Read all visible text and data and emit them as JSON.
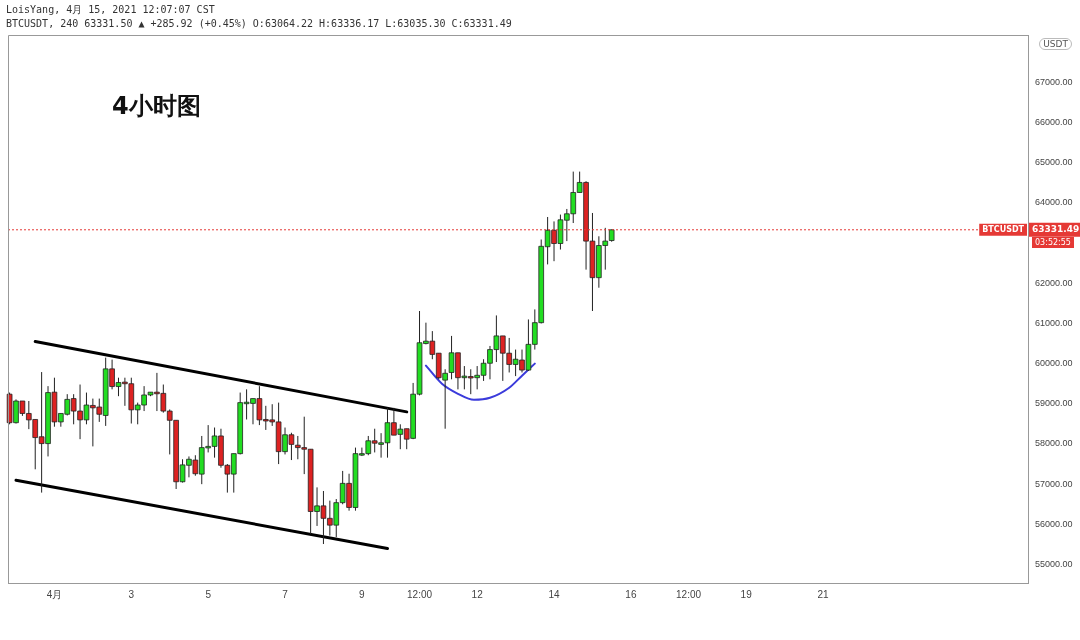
{
  "chart_data": {
    "type": "candlestick",
    "title": "4小时图",
    "ylabel": "USDT",
    "annotations": [
      "LoisYang, 4月 15, 2021 12:07:07 CST",
      "BTCUSDT, 240 63331.50 ▲ +285.92 (+0.45%) O:63064.22 H:63336.17 L:63035.30 C:63331.49",
      "03:52:55",
      "63331.49"
    ],
    "x": [
      "2021-03-30T20:00",
      "2021-03-31T00:00",
      "2021-03-31T04:00",
      "2021-03-31T08:00",
      "2021-03-31T12:00",
      "2021-03-31T16:00",
      "2021-03-31T20:00",
      "2021-04-01T00:00",
      "2021-04-01T04:00",
      "2021-04-01T08:00",
      "2021-04-01T12:00",
      "2021-04-01T16:00",
      "2021-04-01T20:00",
      "2021-04-02T00:00",
      "2021-04-02T04:00",
      "2021-04-02T08:00",
      "2021-04-02T12:00",
      "2021-04-02T16:00",
      "2021-04-02T20:00",
      "2021-04-03T00:00",
      "2021-04-03T04:00",
      "2021-04-03T08:00",
      "2021-04-03T12:00",
      "2021-04-03T16:00",
      "2021-04-03T20:00",
      "2021-04-04T00:00",
      "2021-04-04T04:00",
      "2021-04-04T08:00",
      "2021-04-04T12:00",
      "2021-04-04T16:00",
      "2021-04-04T20:00",
      "2021-04-05T00:00",
      "2021-04-05T04:00",
      "2021-04-05T08:00",
      "2021-04-05T12:00",
      "2021-04-05T16:00",
      "2021-04-05T20:00",
      "2021-04-06T00:00",
      "2021-04-06T04:00",
      "2021-04-06T08:00",
      "2021-04-06T12:00",
      "2021-04-06T16:00",
      "2021-04-06T20:00",
      "2021-04-07T00:00",
      "2021-04-07T04:00",
      "2021-04-07T08:00",
      "2021-04-07T12:00",
      "2021-04-07T16:00",
      "2021-04-07T20:00",
      "2021-04-08T00:00",
      "2021-04-08T04:00",
      "2021-04-08T08:00",
      "2021-04-08T12:00",
      "2021-04-08T16:00",
      "2021-04-08T20:00",
      "2021-04-09T00:00",
      "2021-04-09T04:00",
      "2021-04-09T08:00",
      "2021-04-09T12:00",
      "2021-04-09T16:00",
      "2021-04-09T20:00",
      "2021-04-10T00:00",
      "2021-04-10T04:00",
      "2021-04-10T08:00",
      "2021-04-10T12:00",
      "2021-04-10T16:00",
      "2021-04-10T20:00",
      "2021-04-11T00:00",
      "2021-04-11T04:00",
      "2021-04-11T08:00",
      "2021-04-11T12:00",
      "2021-04-11T16:00",
      "2021-04-11T20:00",
      "2021-04-12T00:00",
      "2021-04-12T04:00",
      "2021-04-12T08:00",
      "2021-04-12T12:00",
      "2021-04-12T16:00",
      "2021-04-12T20:00",
      "2021-04-13T00:00",
      "2021-04-13T04:00",
      "2021-04-13T08:00",
      "2021-04-13T12:00",
      "2021-04-13T16:00",
      "2021-04-13T20:00",
      "2021-04-14T00:00",
      "2021-04-14T04:00",
      "2021-04-14T08:00",
      "2021-04-14T12:00",
      "2021-04-14T16:00",
      "2021-04-14T20:00",
      "2021-04-15T00:00",
      "2021-04-15T04:00",
      "2021-04-15T08:00",
      "2021-04-15T12:00"
    ],
    "ohlc": [
      [
        59240,
        59280,
        58490,
        58530
      ],
      [
        58530,
        59110,
        58510,
        59070
      ],
      [
        59070,
        59070,
        58700,
        58760
      ],
      [
        58760,
        59070,
        58370,
        58600
      ],
      [
        58610,
        58610,
        57370,
        58160
      ],
      [
        58180,
        59790,
        56790,
        58010
      ],
      [
        58010,
        59440,
        57690,
        59280
      ],
      [
        59290,
        59650,
        58430,
        58550
      ],
      [
        58550,
        58760,
        58430,
        58760
      ],
      [
        58740,
        59240,
        58710,
        59110
      ],
      [
        59130,
        59240,
        58490,
        58820
      ],
      [
        58820,
        59480,
        58120,
        58600
      ],
      [
        58600,
        59280,
        58490,
        58970
      ],
      [
        58960,
        59130,
        57940,
        58900
      ],
      [
        58920,
        59130,
        58550,
        58740
      ],
      [
        58710,
        60150,
        58450,
        59870
      ],
      [
        59870,
        60100,
        59360,
        59430
      ],
      [
        59430,
        59650,
        59190,
        59530
      ],
      [
        59540,
        59650,
        58950,
        59500
      ],
      [
        59500,
        59650,
        58510,
        58850
      ],
      [
        58850,
        59030,
        58490,
        58970
      ],
      [
        58970,
        59440,
        58820,
        59220
      ],
      [
        59220,
        59290,
        59190,
        59290
      ],
      [
        59290,
        59770,
        58820,
        59250
      ],
      [
        59260,
        59480,
        58780,
        58820
      ],
      [
        58820,
        58860,
        57740,
        58590
      ],
      [
        58590,
        58590,
        56880,
        57060
      ],
      [
        57060,
        57620,
        57040,
        57480
      ],
      [
        57470,
        57690,
        57170,
        57620
      ],
      [
        57600,
        57720,
        57210,
        57260
      ],
      [
        57250,
        58200,
        57000,
        57910
      ],
      [
        57910,
        58470,
        57790,
        57940
      ],
      [
        57940,
        58410,
        57660,
        58200
      ],
      [
        58200,
        58380,
        57410,
        57470
      ],
      [
        57470,
        57500,
        56790,
        57250
      ],
      [
        57250,
        57760,
        56790,
        57760
      ],
      [
        57760,
        59280,
        57740,
        59030
      ],
      [
        59010,
        59360,
        58610,
        59040
      ],
      [
        59010,
        59130,
        58490,
        59130
      ],
      [
        59130,
        59440,
        58470,
        58600
      ],
      [
        58610,
        58950,
        58350,
        58580
      ],
      [
        58600,
        58990,
        58450,
        58550
      ],
      [
        58550,
        59030,
        57500,
        57810
      ],
      [
        57810,
        58410,
        57740,
        58230
      ],
      [
        58230,
        58280,
        57600,
        57990
      ],
      [
        57970,
        58200,
        57620,
        57910
      ],
      [
        57910,
        58680,
        57250,
        57870
      ],
      [
        57870,
        57870,
        55760,
        56320
      ],
      [
        56320,
        56920,
        55960,
        56460
      ],
      [
        56460,
        56830,
        55510,
        56150
      ],
      [
        56150,
        56590,
        55720,
        55980
      ],
      [
        55980,
        56630,
        55680,
        56540
      ],
      [
        56540,
        57330,
        56500,
        57020
      ],
      [
        57020,
        57260,
        56340,
        56420
      ],
      [
        56420,
        57910,
        56340,
        57760
      ],
      [
        57740,
        57910,
        57700,
        57760
      ],
      [
        57760,
        58200,
        57720,
        58080
      ],
      [
        58080,
        58380,
        57790,
        58020
      ],
      [
        57990,
        58270,
        57660,
        58030
      ],
      [
        58030,
        58900,
        57660,
        58530
      ],
      [
        58530,
        58900,
        58220,
        58220
      ],
      [
        58240,
        58490,
        57870,
        58370
      ],
      [
        58380,
        58380,
        57870,
        58120
      ],
      [
        58140,
        59520,
        58120,
        59240
      ],
      [
        59240,
        61310,
        59210,
        60520
      ],
      [
        60500,
        61020,
        60480,
        60560
      ],
      [
        60560,
        60810,
        60110,
        60230
      ],
      [
        60260,
        60260,
        59610,
        59650
      ],
      [
        59590,
        59860,
        58380,
        59760
      ],
      [
        59780,
        60690,
        59610,
        60270
      ],
      [
        60270,
        60270,
        59360,
        59650
      ],
      [
        59650,
        59940,
        59360,
        59690
      ],
      [
        59680,
        59860,
        59240,
        59650
      ],
      [
        59650,
        59940,
        59360,
        59710
      ],
      [
        59710,
        60110,
        59570,
        60010
      ],
      [
        60010,
        60440,
        59610,
        60350
      ],
      [
        60350,
        61200,
        60040,
        60690
      ],
      [
        60690,
        60690,
        59570,
        60260
      ],
      [
        60260,
        60640,
        59780,
        59980
      ],
      [
        59980,
        60350,
        59690,
        60110
      ],
      [
        60090,
        60350,
        59780,
        59840
      ],
      [
        59840,
        61100,
        59820,
        60480
      ],
      [
        60480,
        61350,
        60350,
        61020
      ],
      [
        61020,
        63090,
        61000,
        62920
      ],
      [
        62910,
        63650,
        62470,
        63320
      ],
      [
        63320,
        63540,
        62550,
        62990
      ],
      [
        62990,
        63710,
        62840,
        63580
      ],
      [
        63570,
        63850,
        63050,
        63730
      ],
      [
        63730,
        64780,
        63500,
        64260
      ],
      [
        64260,
        64780,
        64260,
        64510
      ],
      [
        64510,
        64540,
        62340,
        63050
      ],
      [
        63050,
        63750,
        61310,
        62140
      ],
      [
        62140,
        63170,
        61890,
        62940
      ],
      [
        62940,
        63380,
        62340,
        63050
      ],
      [
        63064.22,
        63336.17,
        63035.3,
        63331.49
      ]
    ],
    "colors": [
      "#dd2222",
      "#22dd22",
      "#dd2222",
      "#dd2222",
      "#dd2222",
      "#dd2222",
      "#22dd22",
      "#dd2222",
      "#22dd22",
      "#22dd22",
      "#dd2222",
      "#dd2222",
      "#22dd22",
      "#dd2222",
      "#dd2222",
      "#22dd22",
      "#dd2222",
      "#22dd22",
      "#dd2222",
      "#dd2222",
      "#22dd22",
      "#22dd22",
      "#22dd22",
      "#dd2222",
      "#dd2222",
      "#dd2222",
      "#dd2222",
      "#22dd22",
      "#22dd22",
      "#dd2222",
      "#22dd22",
      "#22dd22",
      "#22dd22",
      "#dd2222",
      "#dd2222",
      "#22dd22",
      "#22dd22",
      "#22dd22",
      "#22dd22",
      "#dd2222",
      "#dd2222",
      "#dd2222",
      "#dd2222",
      "#22dd22",
      "#dd2222",
      "#dd2222",
      "#dd2222",
      "#dd2222",
      "#22dd22",
      "#dd2222",
      "#dd2222",
      "#22dd22",
      "#22dd22",
      "#dd2222",
      "#22dd22",
      "#22dd22",
      "#22dd22",
      "#dd2222",
      "#22dd22",
      "#22dd22",
      "#dd2222",
      "#22dd22",
      "#dd2222",
      "#22dd22",
      "#22dd22",
      "#22dd22",
      "#dd2222",
      "#dd2222",
      "#22dd22",
      "#22dd22",
      "#dd2222",
      "#22dd22",
      "#dd2222",
      "#22dd22",
      "#22dd22",
      "#22dd22",
      "#22dd22",
      "#dd2222",
      "#dd2222",
      "#22dd22",
      "#dd2222",
      "#22dd22",
      "#22dd22",
      "#22dd22",
      "#22dd22",
      "#dd2222",
      "#22dd22",
      "#22dd22",
      "#22dd22",
      "#22dd22",
      "#dd2222",
      "#dd2222",
      "#22dd22",
      "#22dd22",
      "#22dd22"
    ],
    "series": [
      {
        "type": "line",
        "color": "#000000",
        "x": [
          "2021-03-31T12:00",
          "2021-04-10T04:00"
        ],
        "values": [
          60550,
          58800
        ]
      },
      {
        "type": "line",
        "color": "#000000",
        "x": [
          "2021-03-31T00:00",
          "2021-04-09T16:00"
        ],
        "values": [
          57100,
          55400
        ]
      },
      {
        "type": "line",
        "color": "#3b3bdb",
        "x": [
          "2021-04-10T16:00",
          "2021-04-11T02:00",
          "2021-04-11T12:00",
          "2021-04-11T22:00",
          "2021-04-12T08:00",
          "2021-04-12T20:00",
          "2021-04-13T04:00",
          "2021-04-13T12:00"
        ],
        "values": [
          59950,
          59500,
          59250,
          59100,
          59150,
          59400,
          59700,
          60000
        ]
      }
    ],
    "ref_lines": [
      {
        "axis": "y",
        "value": 63331.49,
        "label": "BTCUSDT",
        "color": "#e53935",
        "line_style": "dotted"
      }
    ],
    "xlim": [
      "2021-03-30T19:00",
      "2021-04-26T08:00"
    ],
    "xticks": [
      {
        "value": "2021-04-01",
        "label": "4月"
      },
      {
        "value": "2021-04-03",
        "label": "3"
      },
      {
        "value": "2021-04-05",
        "label": "5"
      },
      {
        "value": "2021-04-07",
        "label": "7"
      },
      {
        "value": "2021-04-09",
        "label": "9"
      },
      {
        "value": "2021-04-10T12:00",
        "label": "12:00"
      },
      {
        "value": "2021-04-12",
        "label": "12"
      },
      {
        "value": "2021-04-14",
        "label": "14"
      },
      {
        "value": "2021-04-16",
        "label": "16"
      },
      {
        "value": "2021-04-17T12:00",
        "label": "12:00"
      },
      {
        "value": "2021-04-19",
        "label": "19"
      },
      {
        "value": "2021-04-21",
        "label": "21"
      }
    ],
    "ylim": [
      54540,
      68180
    ],
    "yticks": [
      {
        "value": 55000,
        "label": "55000.00"
      },
      {
        "value": 56000,
        "label": "56000.00"
      },
      {
        "value": 57000,
        "label": "57000.00"
      },
      {
        "value": 58000,
        "label": "58000.00"
      },
      {
        "value": 59000,
        "label": "59000.00"
      },
      {
        "value": 60000,
        "label": "60000.00"
      },
      {
        "value": 61000,
        "label": "61000.00"
      },
      {
        "value": 62000,
        "label": "62000.00"
      },
      {
        "value": 64000,
        "label": "64000.00"
      },
      {
        "value": 65000,
        "label": "65000.00"
      },
      {
        "value": 66000,
        "label": "66000.00"
      },
      {
        "value": 67000,
        "label": "67000.00"
      }
    ],
    "grid": false,
    "legend": false,
    "marker": "none"
  }
}
